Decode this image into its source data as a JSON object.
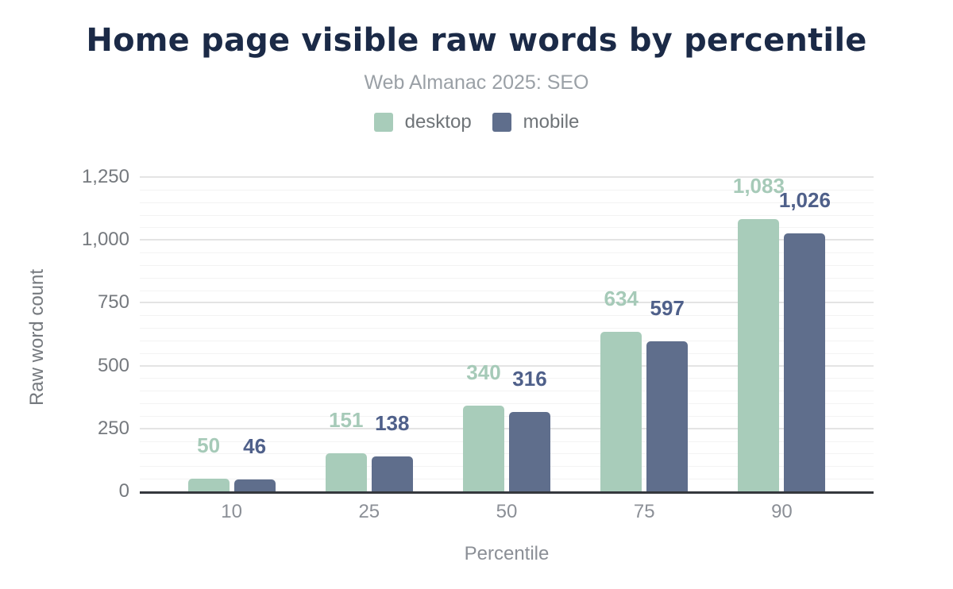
{
  "header": {
    "title": "Home page visible raw words by percentile",
    "subtitle": "Web Almanac 2025: SEO"
  },
  "legend": {
    "items": [
      {
        "label": "desktop",
        "color": "#a8ccba"
      },
      {
        "label": "mobile",
        "color": "#5f6e8c"
      }
    ]
  },
  "chart_data": {
    "type": "bar",
    "title": "Home page visible raw words by percentile",
    "subtitle": "Web Almanac 2025: SEO",
    "categories": [
      "10",
      "25",
      "50",
      "75",
      "90"
    ],
    "series": [
      {
        "name": "desktop",
        "color": "#a8ccba",
        "label_color": "#a6cab8",
        "values": [
          50,
          151,
          340,
          634,
          1083
        ],
        "value_labels": [
          "50",
          "151",
          "340",
          "634",
          "1,083"
        ]
      },
      {
        "name": "mobile",
        "color": "#5f6e8c",
        "label_color": "#4f608a",
        "values": [
          46,
          138,
          316,
          597,
          1026
        ],
        "value_labels": [
          "46",
          "138",
          "316",
          "597",
          "1,026"
        ]
      }
    ],
    "xlabel": "Percentile",
    "ylabel": "Raw word count",
    "ylim": [
      0,
      1250
    ],
    "yticks": [
      0,
      250,
      500,
      750,
      1000,
      1250
    ],
    "ytick_labels": [
      "0",
      "250",
      "500",
      "750",
      "1,000",
      "1,250"
    ],
    "minor_tick_step": 50,
    "grid": true,
    "legend_position": "top"
  },
  "style": {
    "title_color": "#1b2a47",
    "subtitle_color": "#9aa0a6",
    "legend_text_color": "#6f7478",
    "ytick_color": "#75797e",
    "xtick_color": "#8b8f96",
    "y_axis_title_color": "#75797e",
    "x_axis_title_color": "#8b8f96",
    "axis_line_color": "#35383d",
    "grid_major_color": "#e4e4e4",
    "grid_minor_color": "#f3f3f3",
    "background": "#ffffff"
  }
}
